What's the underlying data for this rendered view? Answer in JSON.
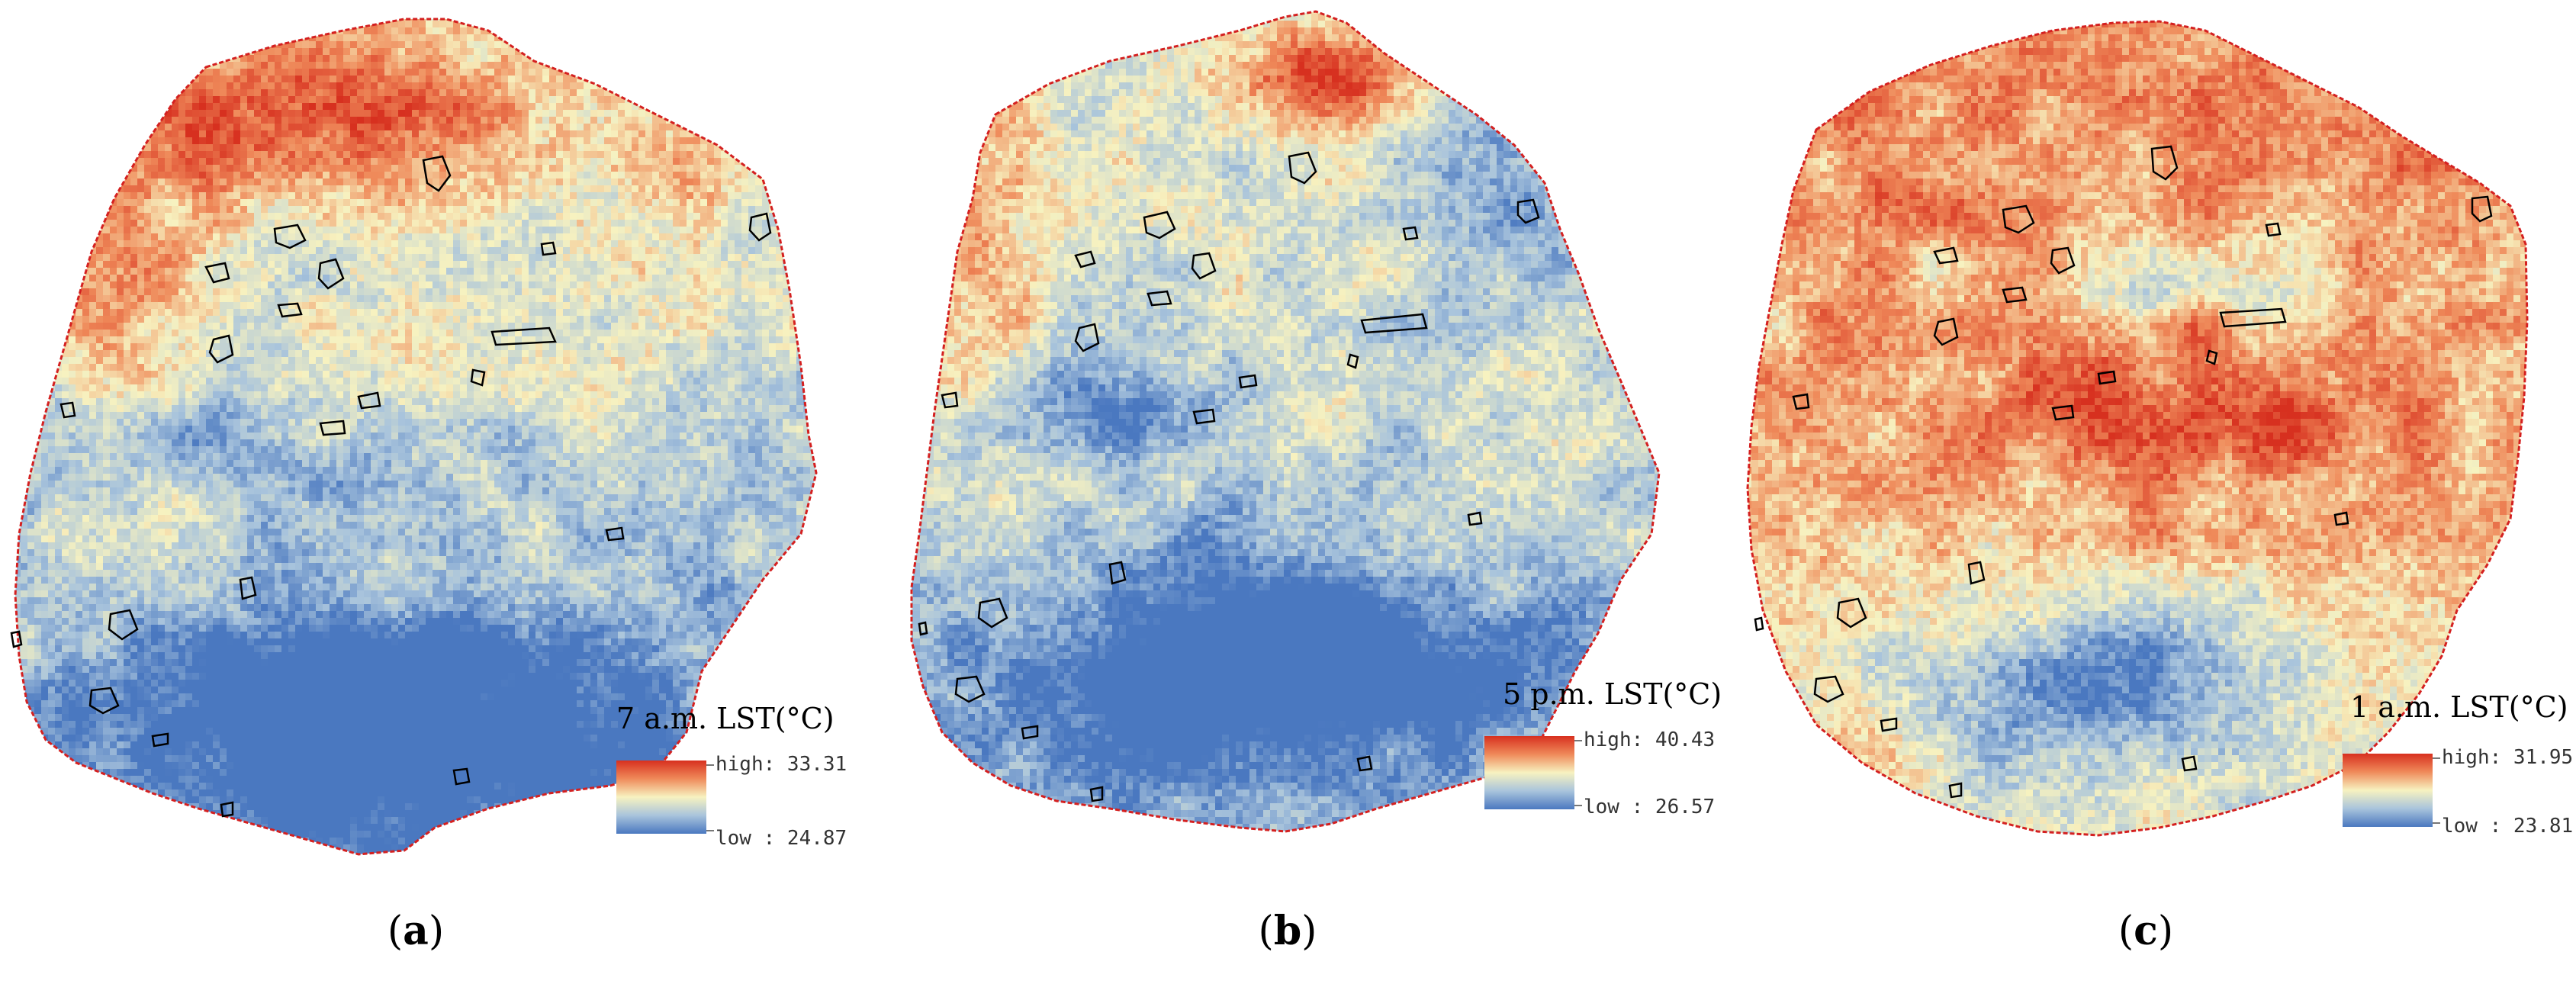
{
  "panels": [
    {
      "id": "a",
      "caption_open": "(",
      "caption_letter": "a",
      "caption_close": ")",
      "legend_title": "7 a.m. LST(°C)",
      "high_label": "high: 33.31",
      "low_label": "low : 24.87",
      "high_value": 33.31,
      "low_value": 24.87,
      "pattern": "morning"
    },
    {
      "id": "b",
      "caption_open": "(",
      "caption_letter": "b",
      "caption_close": ")",
      "legend_title": "5 p.m. LST(°C)",
      "high_label": "high: 40.43",
      "low_label": "low : 26.57",
      "high_value": 40.43,
      "low_value": 26.57,
      "pattern": "afternoon"
    },
    {
      "id": "c",
      "caption_open": "(",
      "caption_letter": "c",
      "caption_close": ")",
      "legend_title": "1 a.m. LST(°C)",
      "high_label": "high: 31.95",
      "low_label": "low : 23.81",
      "high_value": 31.95,
      "low_value": 23.81,
      "pattern": "night"
    }
  ],
  "colors": {
    "high": "#d7301f",
    "mid_high": "#ef8a5a",
    "mid": "#f7f2c0",
    "mid_low": "#a9c4dc",
    "low": "#4a78c0",
    "boundary": "#d42020",
    "outline": "#000000"
  }
}
